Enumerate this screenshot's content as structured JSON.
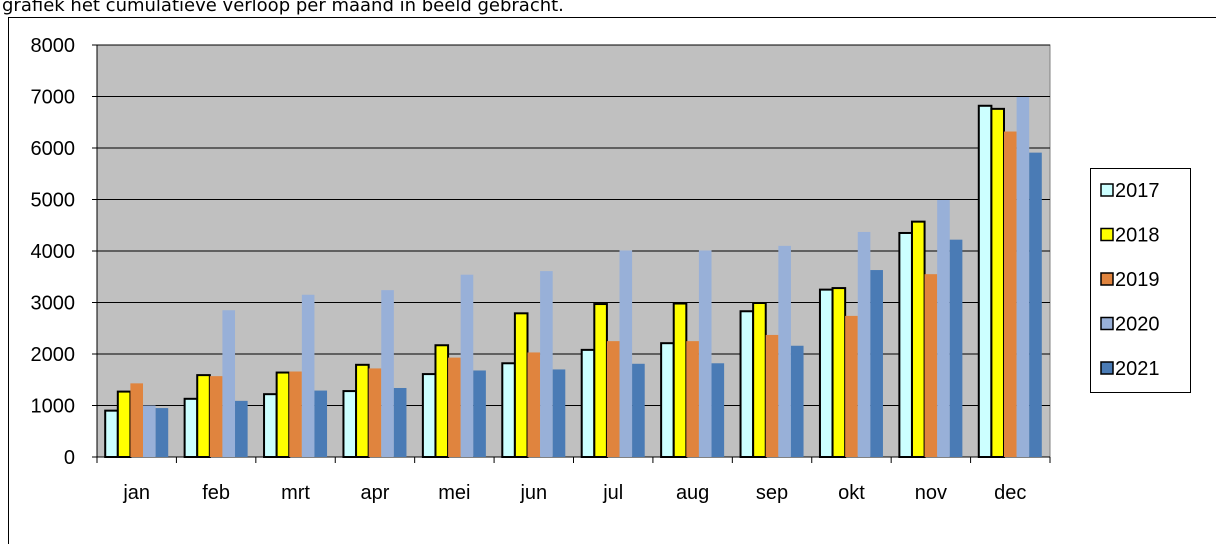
{
  "intro_text": "grafiek het cumulatieve verloop per maand in beeld gebracht.",
  "chart_data": {
    "type": "bar",
    "categories": [
      "jan",
      "feb",
      "mrt",
      "apr",
      "mei",
      "jun",
      "jul",
      "aug",
      "sep",
      "okt",
      "nov",
      "dec"
    ],
    "series": [
      {
        "name": "2017",
        "color": "#ccffff",
        "edgecolor": "#000000",
        "values": [
          900,
          1130,
          1220,
          1280,
          1610,
          1820,
          2080,
          2210,
          2830,
          3250,
          4350,
          6820
        ]
      },
      {
        "name": "2018",
        "color": "#ffff00",
        "edgecolor": "#000000",
        "values": [
          1270,
          1590,
          1640,
          1790,
          2170,
          2790,
          2970,
          2980,
          2990,
          3280,
          4570,
          6760
        ]
      },
      {
        "name": "2019",
        "color": "#e0843e",
        "values": [
          1430,
          1570,
          1660,
          1720,
          1930,
          2030,
          2250,
          2250,
          2370,
          2740,
          3550,
          6320
        ]
      },
      {
        "name": "2020",
        "color": "#98b0d8",
        "values": [
          1000,
          2850,
          3150,
          3240,
          3540,
          3610,
          4010,
          4010,
          4100,
          4370,
          4990,
          6990
        ]
      },
      {
        "name": "2021",
        "color": "#4a7bb5",
        "values": [
          950,
          1090,
          1290,
          1340,
          1680,
          1700,
          1810,
          1820,
          2160,
          3630,
          4220,
          5910
        ]
      }
    ],
    "ylim": [
      0,
      8000
    ],
    "yticks": [
      0,
      1000,
      2000,
      3000,
      4000,
      5000,
      6000,
      7000,
      8000
    ],
    "grid": true,
    "plot_background": "#c0c0c0",
    "legend": "right"
  }
}
